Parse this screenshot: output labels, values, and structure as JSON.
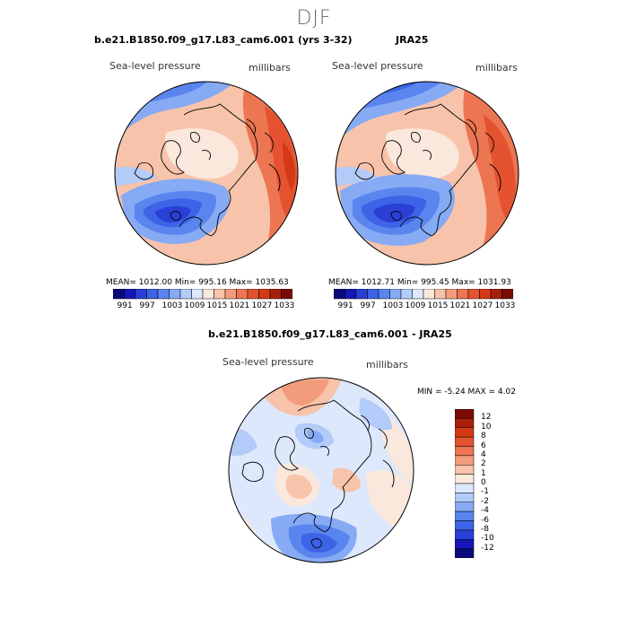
{
  "figure": {
    "season": "DJF",
    "panels": [
      {
        "id": "model",
        "title": "b.e21.B1850.f09_g17.L83_cam6.001 (yrs 3-32)",
        "variable": "Sea-level pressure",
        "units": "millibars",
        "stats": "MEAN= 1012.00   Min= 995.16   Max= 1035.63"
      },
      {
        "id": "obs",
        "title": "JRA25",
        "variable": "Sea-level pressure",
        "units": "millibars",
        "stats": "MEAN= 1012.71   Min= 995.45   Max= 1031.93"
      },
      {
        "id": "diff",
        "title": "b.e21.B1850.f09_g17.L83_cam6.001 - JRA25",
        "variable": "Sea-level pressure",
        "units": "millibars",
        "stats": "MIN =   -5.24 MAX =    4.02"
      }
    ],
    "abs_colorbar": {
      "colors": [
        "#0a0a7a",
        "#1616b8",
        "#2a3fd6",
        "#3d63e6",
        "#5a85ee",
        "#86aaf4",
        "#b3cbf8",
        "#dde8fc",
        "#fbe8dc",
        "#f7c3aa",
        "#f29c7c",
        "#ec7552",
        "#e4522f",
        "#d43815",
        "#a8200c",
        "#7a0b04"
      ],
      "tick_labels": [
        "991",
        "997",
        "1003",
        "1009",
        "1015",
        "1021",
        "1027",
        "1033"
      ]
    },
    "diff_colorbar": {
      "colors": [
        "#0a0a7a",
        "#1616b8",
        "#2a3fd6",
        "#3d63e6",
        "#5a85ee",
        "#86aaf4",
        "#b3cbf8",
        "#dde8fc",
        "#fbe8dc",
        "#f7c3aa",
        "#f29c7c",
        "#ec7552",
        "#e4522f",
        "#d43815",
        "#a8200c",
        "#7a0b04"
      ],
      "tick_labels": [
        "-12",
        "-10",
        "-8",
        "-6",
        "-4",
        "-2",
        "-1",
        "0",
        "1",
        "2",
        "4",
        "6",
        "8",
        "10",
        "12"
      ]
    }
  }
}
